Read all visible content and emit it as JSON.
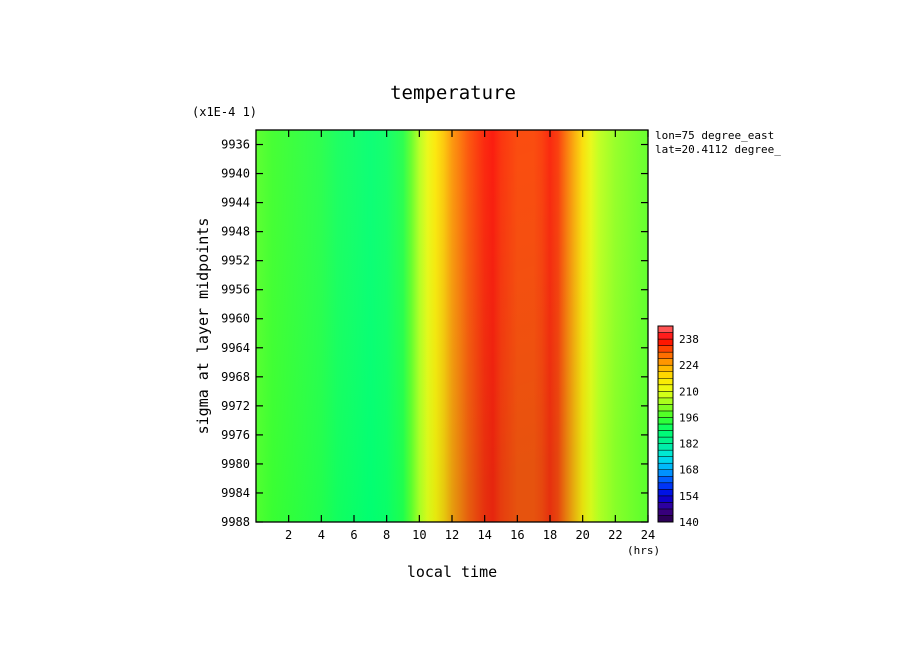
{
  "chart_data": {
    "type": "heatmap",
    "title": "temperature",
    "xlabel": "local time",
    "x_units": "(hrs)",
    "ylabel": "sigma at layer midpoints",
    "y_scale_note": "(x1E-4 1)",
    "annotations": [
      "lon=75 degree_east",
      "lat=20.4112 degree_"
    ],
    "xlim": [
      0,
      24
    ],
    "ylim": [
      9988,
      9934
    ],
    "x_ticks": [
      2,
      4,
      6,
      8,
      10,
      12,
      14,
      16,
      18,
      20,
      22,
      24
    ],
    "y_ticks": [
      9936,
      9940,
      9944,
      9948,
      9952,
      9956,
      9960,
      9964,
      9968,
      9972,
      9976,
      9980,
      9984,
      9988
    ],
    "colorbar": {
      "min": 140,
      "max": 245,
      "ticks": [
        140,
        154,
        168,
        182,
        196,
        210,
        224,
        238
      ]
    },
    "temperature_profile": {
      "local_time": [
        0,
        1,
        2,
        3,
        4,
        5,
        6,
        7,
        8,
        9,
        9.5,
        10,
        10.5,
        11,
        11.5,
        12,
        12.5,
        13,
        13.5,
        14,
        14.5,
        15,
        16,
        17,
        17.5,
        18,
        18.5,
        19,
        19.5,
        20,
        20.5,
        21,
        22,
        23,
        24
      ],
      "temperature": [
        198,
        196,
        195,
        194,
        193,
        191,
        190,
        189,
        190,
        193,
        199,
        206,
        212,
        217,
        221,
        226,
        229,
        232,
        234,
        236,
        237,
        235,
        233,
        233,
        234,
        236,
        234,
        229,
        224,
        218,
        212,
        207,
        203,
        201,
        199
      ]
    },
    "grid": false,
    "legend": "right"
  }
}
